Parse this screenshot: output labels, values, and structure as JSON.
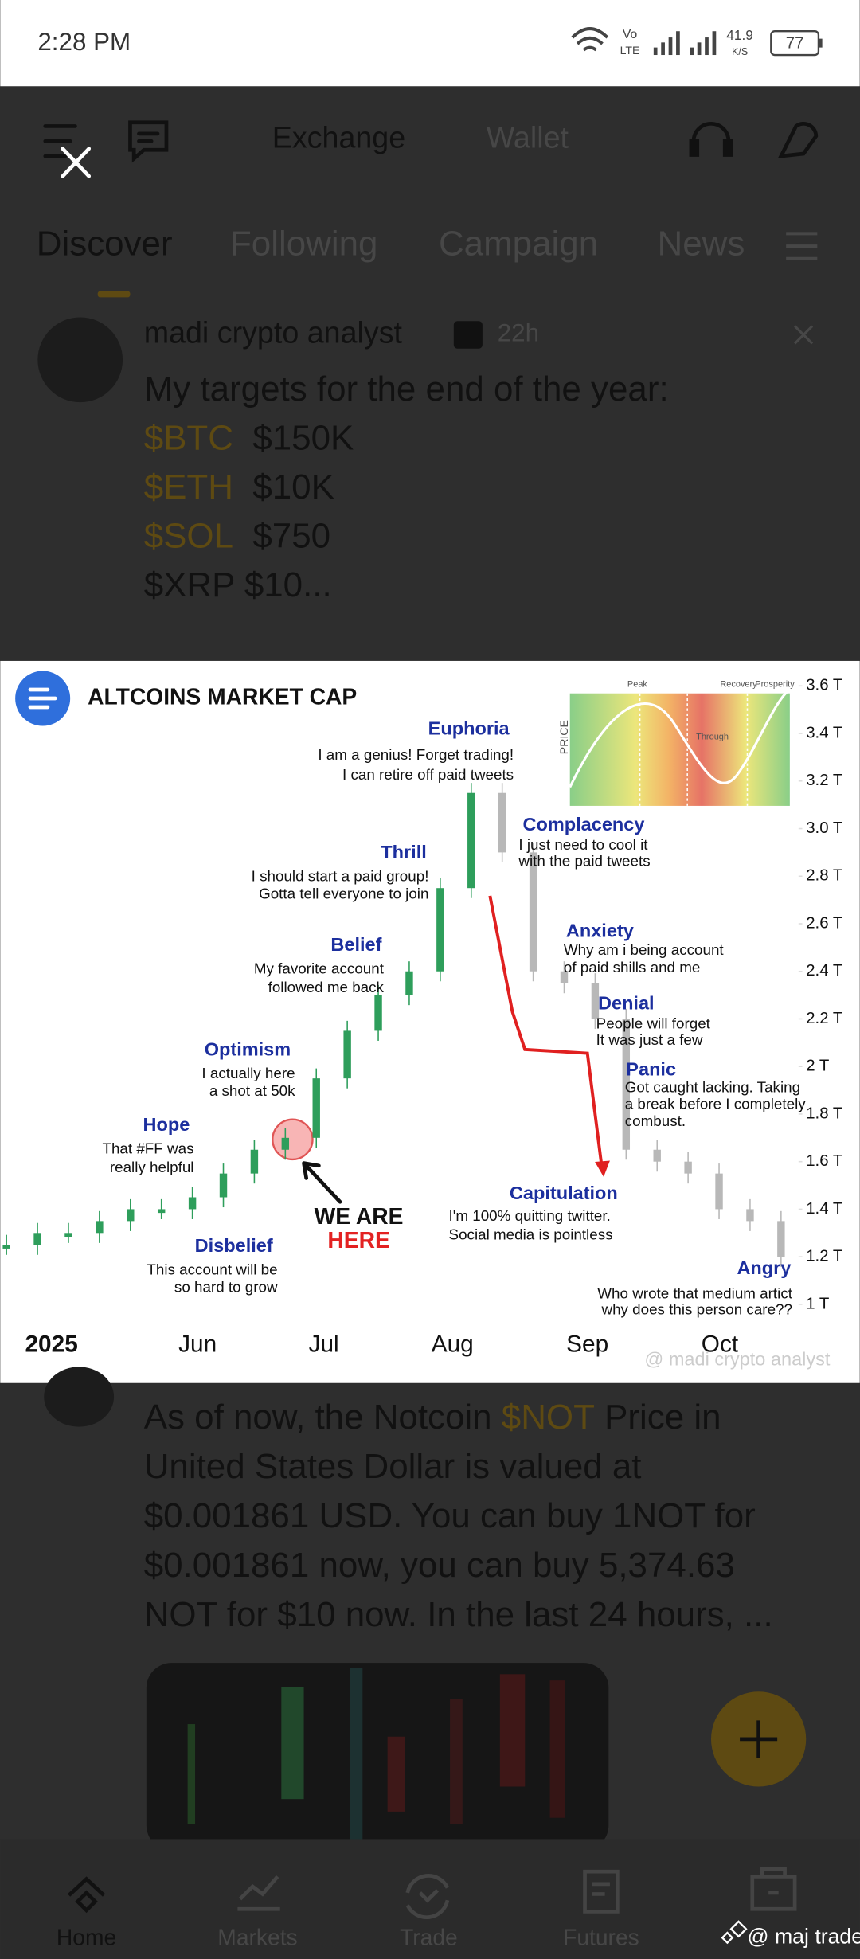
{
  "status_bar": {
    "time": "2:28 PM",
    "volte": "Vo",
    "lte": "LTE",
    "speed": "41.9",
    "speed_unit": "K/S",
    "battery": "77"
  },
  "header": {
    "tabs": [
      "Exchange",
      "Wallet"
    ]
  },
  "feed_tabs": [
    "Discover",
    "Following",
    "Campaign",
    "News"
  ],
  "post": {
    "author": "madi crypto analyst",
    "time": "22h",
    "lines": [
      [
        {
          "text": "My targets for the end of the year:"
        }
      ],
      [
        {
          "text": "$BTC",
          "ticker": true
        },
        {
          "text": "  $150K"
        }
      ],
      [
        {
          "text": "$ETH",
          "ticker": true
        },
        {
          "text": "  $10K"
        }
      ],
      [
        {
          "text": "$SOL",
          "ticker": true
        },
        {
          "text": "  $750"
        }
      ],
      [
        {
          "text": "$XRP $10..."
        }
      ]
    ]
  },
  "chart_data": {
    "type": "candlestick",
    "title": "ALTCOINS MARKET CAP",
    "x_labels": [
      "2025",
      "Jun",
      "Jul",
      "Aug",
      "Sep",
      "Oct"
    ],
    "values": [
      1.25,
      1.3,
      1.3,
      1.35,
      1.4,
      1.4,
      1.45,
      1.55,
      1.65,
      1.7,
      1.95,
      2.15,
      2.3,
      2.4,
      2.75,
      3.15,
      2.9,
      2.4,
      2.35,
      2.2,
      1.65,
      1.6,
      1.55,
      1.4,
      1.35,
      1.2
    ],
    "ylim": [
      1,
      3.6
    ],
    "yticks": [
      {
        "value": 3.6,
        "label": "3.6 T"
      },
      {
        "value": 3.4,
        "label": "3.4 T"
      },
      {
        "value": 3.2,
        "label": "3.2 T"
      },
      {
        "value": 3.0,
        "label": "3.0 T"
      },
      {
        "value": 2.8,
        "label": "2.8 T"
      },
      {
        "value": 2.6,
        "label": "2.6 T"
      },
      {
        "value": 2.4,
        "label": "2.4 T"
      },
      {
        "value": 2.2,
        "label": "2.2 T"
      },
      {
        "value": 2,
        "label": "2 T"
      },
      {
        "value": 1.8,
        "label": "1.8 T"
      },
      {
        "value": 1.6,
        "label": "1.6 T"
      },
      {
        "value": 1.4,
        "label": "1.4 T"
      },
      {
        "value": 1.2,
        "label": "1.2 T"
      },
      {
        "value": 1,
        "label": "1 T"
      }
    ],
    "up_color": "#2e9e5b",
    "down_color": "#d9534f",
    "faded_color": "#b8b8b8",
    "annotations": [
      {
        "title": "Euphoria",
        "text": [
          "I am a genius! Forget trading!",
          "I can retire off paid tweets"
        ]
      },
      {
        "title": "Thrill",
        "text": [
          "I should start a paid group!",
          "Gotta tell everyone to join"
        ]
      },
      {
        "title": "Belief",
        "text": [
          "My favorite account",
          "followed me back"
        ]
      },
      {
        "title": "Optimism",
        "text": [
          "I actually here",
          "a shot at 50k"
        ]
      },
      {
        "title": "Hope",
        "text": [
          "That #FF was",
          "really helpful"
        ]
      },
      {
        "title": "Disbelief",
        "text": [
          "This account will be",
          "so hard to grow"
        ]
      },
      {
        "title": "Complacency",
        "text": [
          "I just need to cool it",
          "with the paid tweets"
        ]
      },
      {
        "title": "Anxiety",
        "text": [
          "Why am i being account",
          "of paid shills and me"
        ]
      },
      {
        "title": "Denial",
        "text": [
          "People will forget",
          "It was just a few"
        ]
      },
      {
        "title": "Panic",
        "text": [
          "Got caught lacking. Taking",
          "a break before I completely",
          "combust."
        ]
      },
      {
        "title": "Capitulation",
        "text": [
          "I'm 100% quitting twitter.",
          "Social media is pointless"
        ]
      },
      {
        "title": "Angry",
        "text": [
          "Who wrote that medium artict",
          "why does this person care??"
        ]
      }
    ],
    "marker": [
      "WE ARE",
      "HERE"
    ],
    "inset": [
      "Peak",
      "Recovery",
      "Prosperity",
      "Through",
      "PRICE"
    ],
    "watermark": "@ madi crypto analyst"
  },
  "post2": {
    "lines": [
      [
        {
          "text": "As of now, the Notcoin "
        },
        {
          "text": "$NOT",
          "ticker": true
        },
        {
          "text": " Price in"
        }
      ],
      [
        {
          "text": "United States Dollar is valued at"
        }
      ],
      [
        {
          "text": "$0.001861 USD. You can buy 1NOT for"
        }
      ],
      [
        {
          "text": "$0.001861 now, you can buy 5,374.63"
        }
      ],
      [
        {
          "text": "NOT for $10 now. In the last 24 hours, ..."
        }
      ]
    ]
  },
  "nav": {
    "items": [
      "Home",
      "Markets",
      "Trade",
      "Futures"
    ],
    "watermark": "@ maj trade"
  }
}
